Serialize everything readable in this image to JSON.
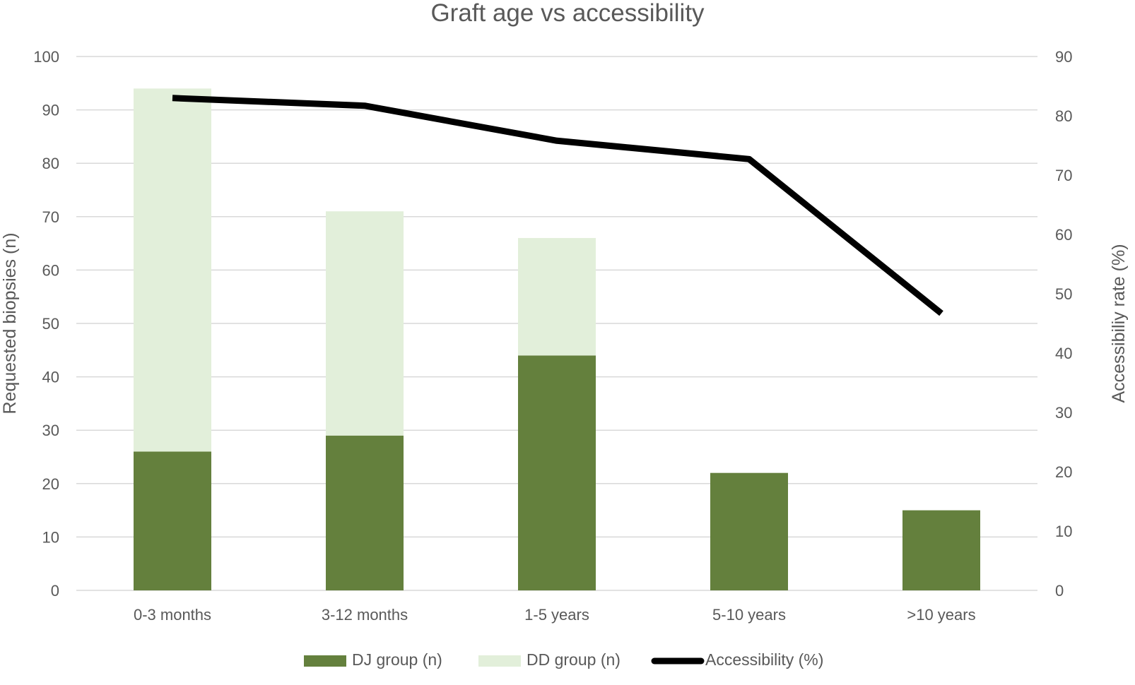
{
  "chart_data": {
    "type": "bar",
    "title": "Graft age vs accessibility",
    "categories": [
      "0-3 months",
      "3-12 months",
      "1-5 years",
      "5-10 years",
      ">10 years"
    ],
    "stacked": true,
    "series": [
      {
        "name": "DJ group (n)",
        "type": "bar",
        "axis": "left",
        "color": "#64803d",
        "values": [
          26,
          29,
          44,
          22,
          15
        ]
      },
      {
        "name": "DD group (n)",
        "type": "bar",
        "axis": "left",
        "color": "#e2efda",
        "values": [
          68,
          42,
          22,
          0,
          0
        ]
      },
      {
        "name": "Accessibility (%)",
        "type": "line",
        "axis": "right",
        "color": "#000000",
        "values": [
          83,
          81.7,
          75.8,
          72.7,
          46.7
        ]
      }
    ],
    "ylabel": "Requested biopsies (n)",
    "ylim": [
      0,
      100
    ],
    "yticks": [
      0,
      10,
      20,
      30,
      40,
      50,
      60,
      70,
      80,
      90,
      100
    ],
    "y2label": "Accessibiliy rate (%)",
    "y2lim": [
      0,
      90
    ],
    "y2ticks": [
      0,
      10,
      20,
      30,
      40,
      50,
      60,
      70,
      80,
      90
    ],
    "grid": true,
    "legend_position": "bottom"
  }
}
